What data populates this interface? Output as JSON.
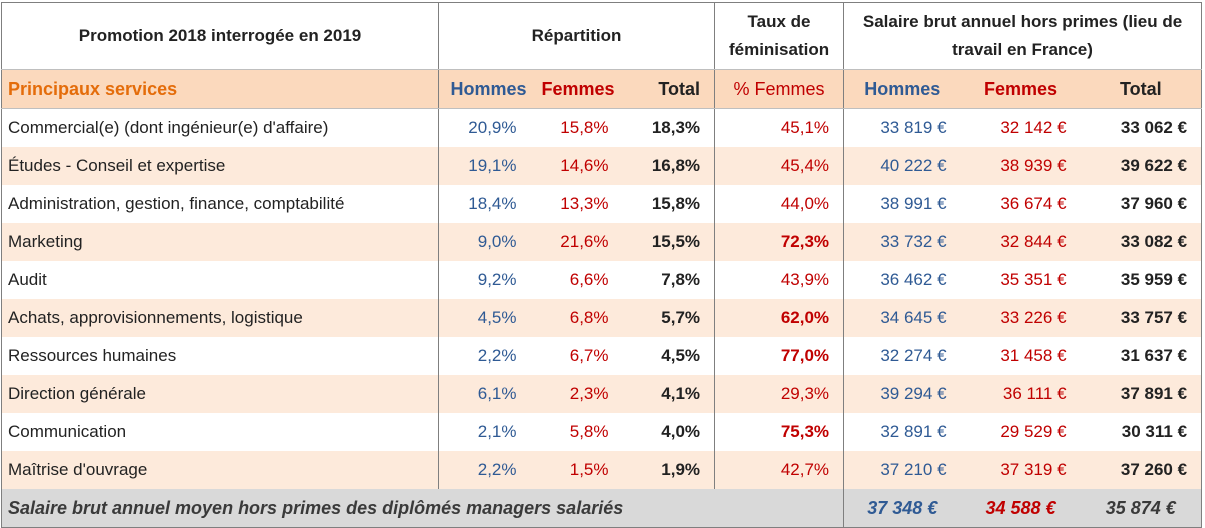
{
  "header": {
    "title": "Promotion 2018 interrogée en 2019",
    "repartition": "Répartition",
    "taux": "Taux de féminisation",
    "salaire": "Salaire brut annuel hors primes (lieu de travail en France)"
  },
  "subheader": {
    "label": "Principaux services",
    "hommes": "Hommes",
    "femmes": "Femmes",
    "total": "Total",
    "pct_femmes": "% Femmes",
    "sal_hommes": "Hommes",
    "sal_femmes": "Femmes",
    "sal_total": "Total"
  },
  "rows": [
    {
      "service": "Commercial(e) (dont ingénieur(e) d'affaire)",
      "hommes": "20,9%",
      "femmes": "15,8%",
      "total": "18,3%",
      "pct": "45,1%",
      "sal_h": "33 819 €",
      "sal_f": "32 142 €",
      "sal_t": "33 062 €"
    },
    {
      "service": "Études - Conseil et expertise",
      "hommes": "19,1%",
      "femmes": "14,6%",
      "total": "16,8%",
      "pct": "45,4%",
      "sal_h": "40 222 €",
      "sal_f": "38 939 €",
      "sal_t": "39 622 €"
    },
    {
      "service": "Administration, gestion, finance, comptabilité",
      "hommes": "18,4%",
      "femmes": "13,3%",
      "total": "15,8%",
      "pct": "44,0%",
      "sal_h": "38 991 €",
      "sal_f": "36 674 €",
      "sal_t": "37 960 €"
    },
    {
      "service": "Marketing",
      "hommes": "9,0%",
      "femmes": "21,6%",
      "total": "15,5%",
      "pct": "72,3%",
      "sal_h": "33 732 €",
      "sal_f": "32 844 €",
      "sal_t": "33 082 €"
    },
    {
      "service": "Audit",
      "hommes": "9,2%",
      "femmes": "6,6%",
      "total": "7,8%",
      "pct": "43,9%",
      "sal_h": "36 462 €",
      "sal_f": "35 351 €",
      "sal_t": "35 959 €"
    },
    {
      "service": "Achats, approvisionnements, logistique",
      "hommes": "4,5%",
      "femmes": "6,8%",
      "total": "5,7%",
      "pct": "62,0%",
      "sal_h": "34 645 €",
      "sal_f": "33 226 €",
      "sal_t": "33 757 €"
    },
    {
      "service": "Ressources humaines",
      "hommes": "2,2%",
      "femmes": "6,7%",
      "total": "4,5%",
      "pct": "77,0%",
      "sal_h": "32 274 €",
      "sal_f": "31 458 €",
      "sal_t": "31 637 €"
    },
    {
      "service": "Direction générale",
      "hommes": "6,1%",
      "femmes": "2,3%",
      "total": "4,1%",
      "pct": "29,3%",
      "sal_h": "39 294 €",
      "sal_f": "36 111 €",
      "sal_t": "37 891 €"
    },
    {
      "service": "Communication",
      "hommes": "2,1%",
      "femmes": "5,8%",
      "total": "4,0%",
      "pct": "75,3%",
      "sal_h": "32 891 €",
      "sal_f": "29 529 €",
      "sal_t": "30 311 €"
    },
    {
      "service": "Maîtrise d'ouvrage",
      "hommes": "2,2%",
      "femmes": "1,5%",
      "total": "1,9%",
      "pct": "42,7%",
      "sal_h": "37 210 €",
      "sal_f": "37 319 €",
      "sal_t": "37 260 €"
    }
  ],
  "footer": {
    "label": "Salaire brut annuel moyen hors primes des diplômés managers salariés",
    "sal_h": "37 348 €",
    "sal_f": "34 588 €",
    "sal_t": "35 874 €"
  },
  "colors": {
    "blue": "#2f5a94",
    "red": "#c00000",
    "orange": "#e46c0a",
    "header_band": "#fbd9bd",
    "stripe": "#fdeadb",
    "footer_band": "#d9d9d9"
  }
}
